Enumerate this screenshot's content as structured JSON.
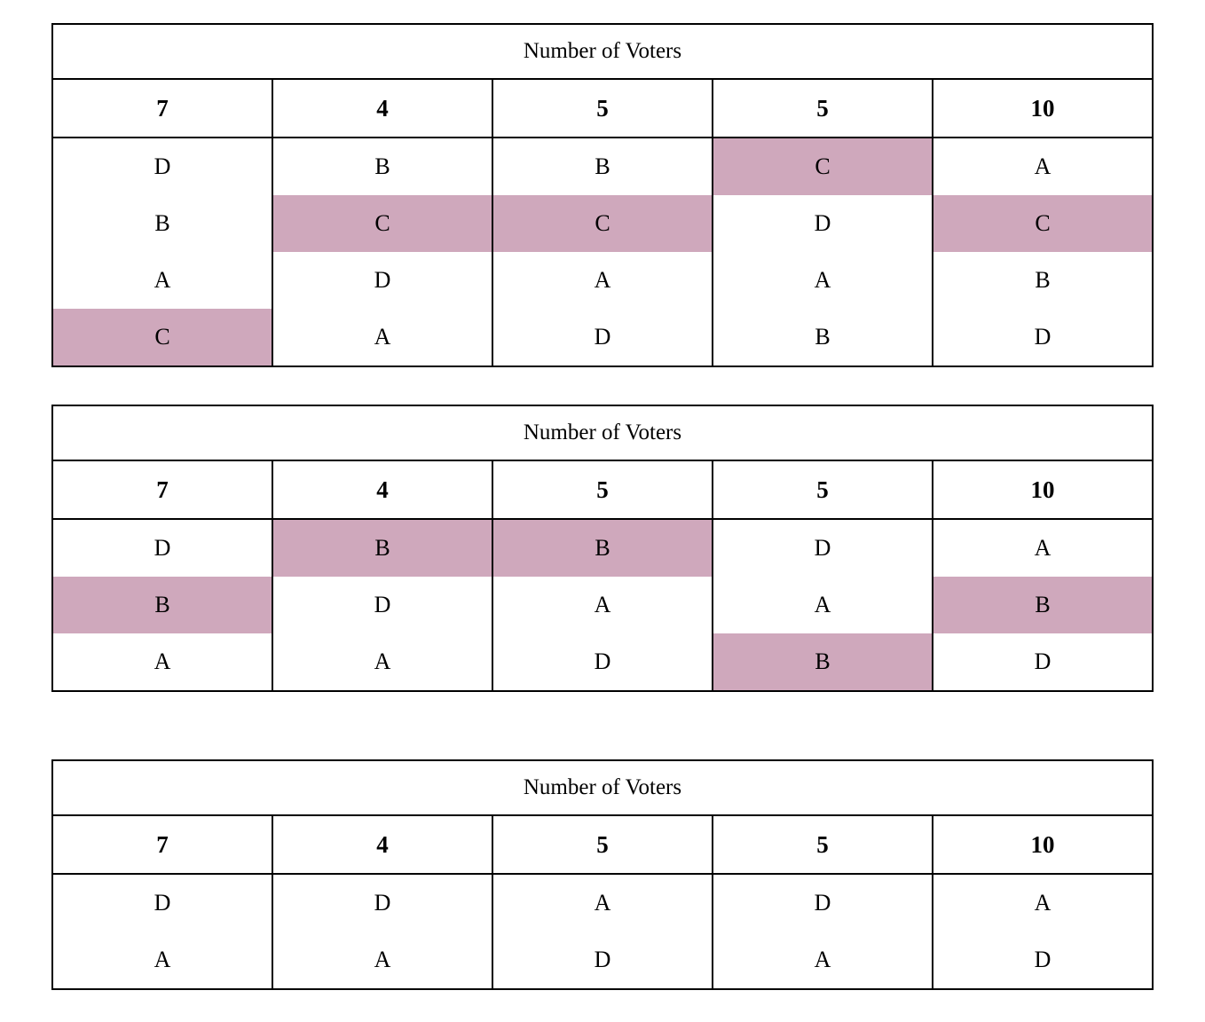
{
  "highlight_color": "#cfa8bc",
  "tables": [
    {
      "title": "Number of Voters",
      "counts": [
        "7",
        "4",
        "5",
        "5",
        "10"
      ],
      "rows": [
        [
          "D",
          "B",
          "B",
          "C",
          "A"
        ],
        [
          "B",
          "C",
          "C",
          "D",
          "C"
        ],
        [
          "A",
          "D",
          "A",
          "A",
          "B"
        ],
        [
          "C",
          "A",
          "D",
          "B",
          "D"
        ]
      ],
      "highlighted": [
        [
          3,
          0
        ],
        [
          1,
          1
        ],
        [
          1,
          2
        ],
        [
          0,
          3
        ],
        [
          1,
          4
        ]
      ]
    },
    {
      "title": "Number of Voters",
      "counts": [
        "7",
        "4",
        "5",
        "5",
        "10"
      ],
      "rows": [
        [
          "D",
          "B",
          "B",
          "D",
          "A"
        ],
        [
          "B",
          "D",
          "A",
          "A",
          "B"
        ],
        [
          "A",
          "A",
          "D",
          "B",
          "D"
        ]
      ],
      "highlighted": [
        [
          1,
          0
        ],
        [
          0,
          1
        ],
        [
          0,
          2
        ],
        [
          2,
          3
        ],
        [
          1,
          4
        ]
      ]
    },
    {
      "title": "Number of Voters",
      "counts": [
        "7",
        "4",
        "5",
        "5",
        "10"
      ],
      "rows": [
        [
          "D",
          "D",
          "A",
          "D",
          "A"
        ],
        [
          "A",
          "A",
          "D",
          "A",
          "D"
        ]
      ],
      "highlighted": []
    }
  ]
}
